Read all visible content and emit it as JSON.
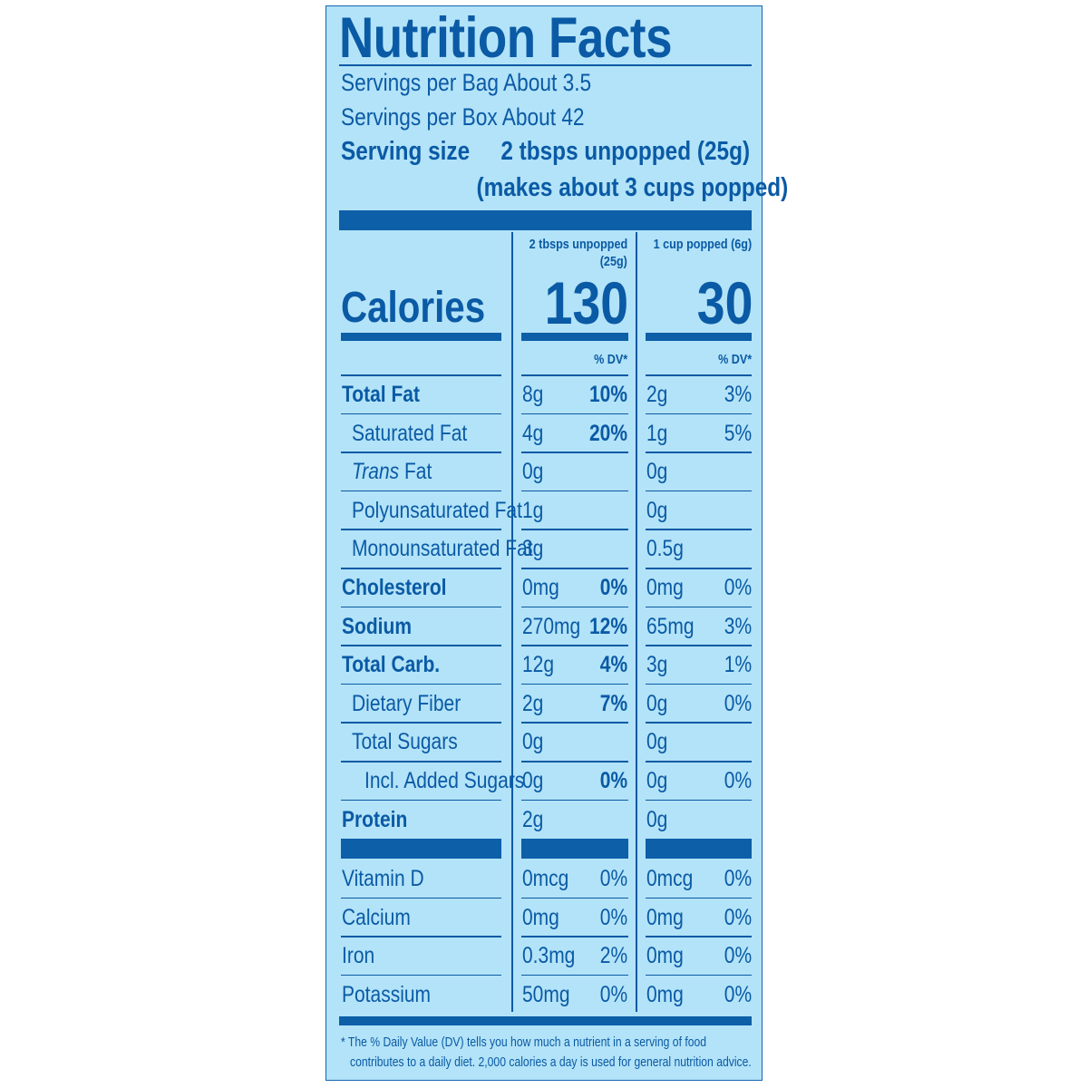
{
  "label": {
    "title": "Nutrition Facts",
    "servings_bag": "Servings per Bag About 3.5",
    "servings_box": "Servings per Box About 42",
    "serving_size_label": "Serving size",
    "serving_size_value": "2 tbsps unpopped (25g)",
    "serving_size_note": "(makes about 3 cups popped)"
  },
  "columns": {
    "col1_header_line1": "2 tbsps unpopped",
    "col1_header_line2": "(25g)",
    "col2_header": "1 cup popped (6g)",
    "dv_header": "% DV*"
  },
  "calories": {
    "label": "Calories",
    "col1": "130",
    "col2": "30"
  },
  "nutrients": [
    {
      "name": "Total Fat",
      "bold": true,
      "indent": 0,
      "a1": "8g",
      "p1": "10%",
      "a2": "2g",
      "p2": "3%"
    },
    {
      "name": "Saturated Fat",
      "bold": false,
      "indent": 1,
      "a1": "4g",
      "p1": "20%",
      "a2": "1g",
      "p2": "5%"
    },
    {
      "name_italic": "Trans",
      "name": " Fat",
      "bold": false,
      "indent": 1,
      "a1": "0g",
      "p1": "",
      "a2": "0g",
      "p2": ""
    },
    {
      "name": "Polyunsaturated Fat",
      "bold": false,
      "indent": 1,
      "a1": "1g",
      "p1": "",
      "a2": "0g",
      "p2": ""
    },
    {
      "name": "Monounsaturated Fat",
      "bold": false,
      "indent": 1,
      "a1": "3g",
      "p1": "",
      "a2": "0.5g",
      "p2": ""
    },
    {
      "name": "Cholesterol",
      "bold": true,
      "indent": 0,
      "a1": "0mg",
      "p1": "0%",
      "a2": "0mg",
      "p2": "0%"
    },
    {
      "name": "Sodium",
      "bold": true,
      "indent": 0,
      "a1": "270mg",
      "p1": "12%",
      "a2": "65mg",
      "p2": "3%"
    },
    {
      "name": "Total Carb.",
      "bold": true,
      "indent": 0,
      "a1": "12g",
      "p1": "4%",
      "a2": "3g",
      "p2": "1%"
    },
    {
      "name": "Dietary Fiber",
      "bold": false,
      "indent": 1,
      "a1": "2g",
      "p1": "7%",
      "a2": "0g",
      "p2": "0%"
    },
    {
      "name": "Total Sugars",
      "bold": false,
      "indent": 1,
      "a1": "0g",
      "p1": "",
      "a2": "0g",
      "p2": ""
    },
    {
      "name": "Incl. Added Sugars",
      "bold": false,
      "indent": 2,
      "a1": "0g",
      "p1": "0%",
      "a2": "0g",
      "p2": "0%"
    },
    {
      "name": "Protein",
      "bold": true,
      "indent": 0,
      "a1": "2g",
      "p1": "",
      "a2": "0g",
      "p2": ""
    }
  ],
  "vitamins": [
    {
      "name": "Vitamin D",
      "a1": "0mcg",
      "p1": "0%",
      "a2": "0mcg",
      "p2": "0%"
    },
    {
      "name": "Calcium",
      "a1": "0mg",
      "p1": "0%",
      "a2": "0mg",
      "p2": "0%"
    },
    {
      "name": "Iron",
      "a1": "0.3mg",
      "p1": "2%",
      "a2": "0mg",
      "p2": "0%"
    },
    {
      "name": "Potassium",
      "a1": "50mg",
      "p1": "0%",
      "a2": "0mg",
      "p2": "0%"
    }
  ],
  "footnote": {
    "line1": "* The % Daily Value (DV) tells you how much a nutrient in a serving of food",
    "line2": "contributes to a daily diet. 2,000 calories a day is used for general nutrition advice."
  },
  "colors": {
    "background": "#b3e3f8",
    "ink": "#0a5aa5"
  }
}
